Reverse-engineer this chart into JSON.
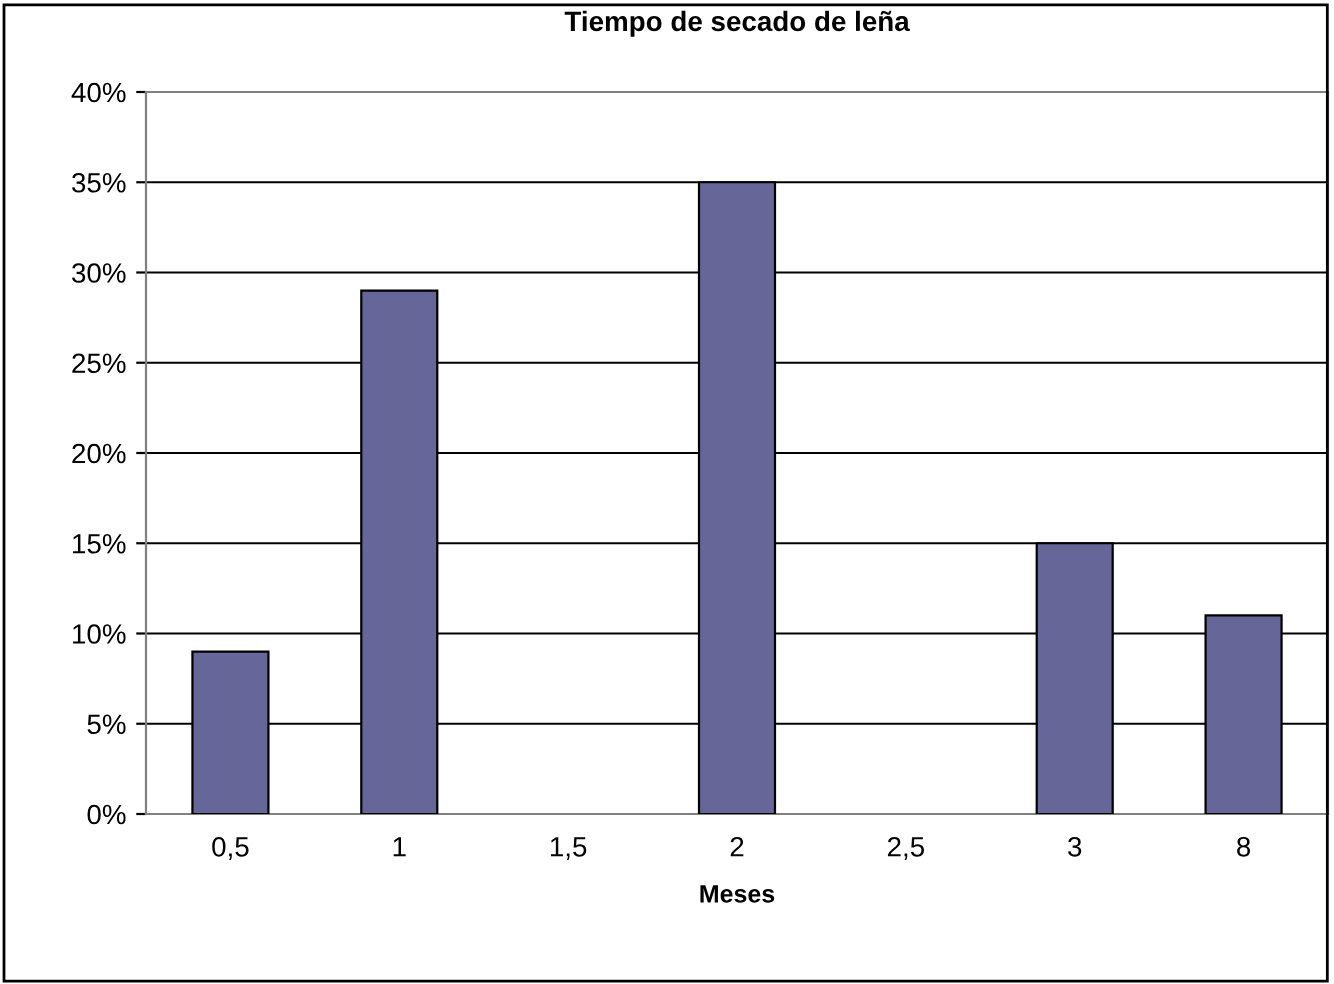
{
  "chart_data": {
    "type": "bar",
    "title": "Tiempo de secado de leña",
    "xlabel": "Meses",
    "categories": [
      "0,5",
      "1",
      "1,5",
      "2",
      "2,5",
      "3",
      "8"
    ],
    "values": [
      9,
      29,
      null,
      35,
      null,
      15,
      11
    ],
    "color": "#666699",
    "ylim": [
      0,
      40
    ],
    "yticks": [
      {
        "value": 0,
        "label": "0%"
      },
      {
        "value": 5,
        "label": "5%"
      },
      {
        "value": 10,
        "label": "10%"
      },
      {
        "value": 15,
        "label": "15%"
      },
      {
        "value": 20,
        "label": "20%"
      },
      {
        "value": 25,
        "label": "25%"
      },
      {
        "value": 30,
        "label": "30%"
      },
      {
        "value": 35,
        "label": "35%"
      },
      {
        "value": 40,
        "label": "40%"
      }
    ],
    "grid": "y"
  }
}
